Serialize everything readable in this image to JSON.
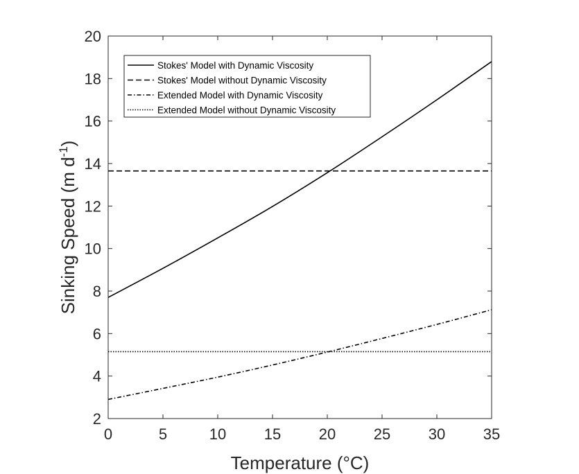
{
  "chart_data": {
    "type": "line",
    "title": "",
    "xlabel": "Temperature (°C)",
    "ylabel_main": "Sinking Speed (m d",
    "ylabel_sup": "-1",
    "ylabel_close": ")",
    "xlim": [
      0,
      35
    ],
    "ylim": [
      2,
      20
    ],
    "xticks": [
      0,
      5,
      10,
      15,
      20,
      25,
      30,
      35
    ],
    "yticks": [
      2,
      4,
      6,
      8,
      10,
      12,
      14,
      16,
      18,
      20
    ],
    "grid": false,
    "legend_position": "top-left",
    "series": [
      {
        "name": "Stokes' Model with Dynamic Viscosity",
        "style": "solid",
        "color": "#000000",
        "x": [
          0,
          5,
          10,
          15,
          20,
          25,
          30,
          35
        ],
        "y": [
          7.7,
          9.07,
          10.5,
          11.98,
          13.57,
          15.26,
          17.0,
          18.8
        ]
      },
      {
        "name": "Stokes' Model without Dynamic Viscosity",
        "style": "dashed",
        "color": "#000000",
        "x": [
          0,
          35
        ],
        "y": [
          13.65,
          13.65
        ]
      },
      {
        "name": "Extended Model with Dynamic Viscosity",
        "style": "dashdot",
        "color": "#000000",
        "x": [
          0,
          5,
          10,
          15,
          20,
          25,
          30,
          35
        ],
        "y": [
          2.9,
          3.42,
          3.95,
          4.52,
          5.13,
          5.77,
          6.43,
          7.12
        ]
      },
      {
        "name": "Extended Model without Dynamic Viscosity",
        "style": "dotted",
        "color": "#000000",
        "x": [
          0,
          35
        ],
        "y": [
          5.15,
          5.15
        ]
      }
    ]
  }
}
